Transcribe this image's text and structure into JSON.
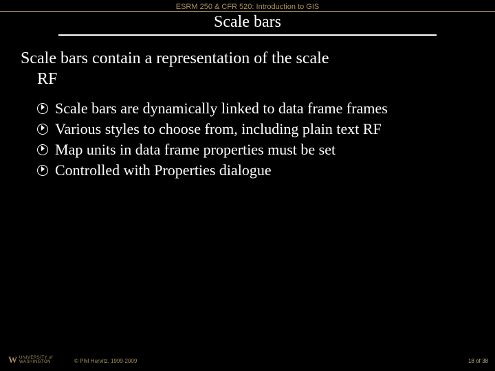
{
  "colors": {
    "background": "#000000",
    "header_text": "#a89060",
    "header_rule": "#a89060",
    "title_text": "#ffffff",
    "title_rule": "#ffffff",
    "body_text": "#ffffff",
    "bullet_ring": "#ffffff",
    "bullet_arrow": "#ffffff",
    "footer_text": "#a89060",
    "page_text": "#c4b486"
  },
  "header": {
    "course": "ESRM 250 & CFR 520: Introduction to GIS"
  },
  "title": "Scale bars",
  "lead_line1": "Scale bars contain a representation of the scale",
  "lead_line2": "RF",
  "bullets": [
    "Scale bars are dynamically linked to data frame frames",
    "Various styles to choose from, including plain text RF",
    "Map units in data frame properties must be set",
    "Controlled with Properties dialogue"
  ],
  "footer": {
    "logo_w": "W",
    "logo_line1": "UNIVERSITY of",
    "logo_line2": "WASHINGTON",
    "copyright": "© Phil Hurvitz, 1999-2009",
    "page": "18 of 38"
  }
}
